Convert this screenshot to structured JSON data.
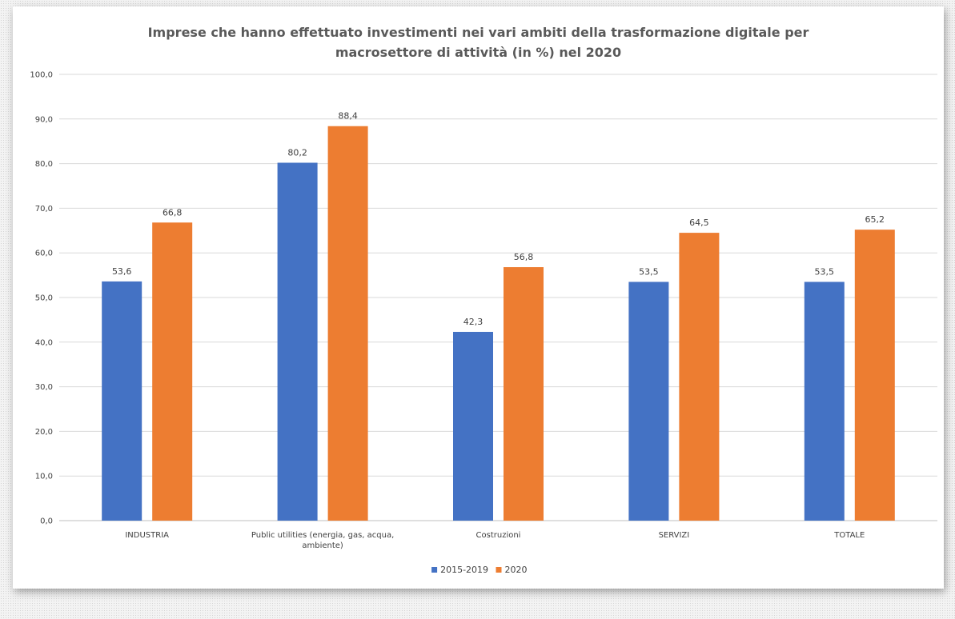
{
  "chart_data": {
    "type": "bar",
    "title_lines": [
      "Imprese che hanno effettuato investimenti nei vari ambiti della trasformazione digitale per",
      "macrosettore di attività (in %) nel 2020"
    ],
    "categories": [
      [
        "INDUSTRIA"
      ],
      [
        "Public utilities (energia, gas, acqua,",
        "ambiente)"
      ],
      [
        "Costruzioni"
      ],
      [
        "SERVIZI"
      ],
      [
        "TOTALE"
      ]
    ],
    "series": [
      {
        "name": "2015-2019",
        "color": "#4472c4",
        "values": [
          53.6,
          80.2,
          42.3,
          53.5,
          53.5
        ],
        "labels": [
          "53,6",
          "80,2",
          "42,3",
          "53,5",
          "53,5"
        ]
      },
      {
        "name": "2020",
        "color": "#ed7d31",
        "values": [
          66.8,
          88.4,
          56.8,
          64.5,
          65.2
        ],
        "labels": [
          "66,8",
          "88,4",
          "56,8",
          "64,5",
          "65,2"
        ]
      }
    ],
    "ylim": [
      0,
      100
    ],
    "yticks": [
      0,
      10,
      20,
      30,
      40,
      50,
      60,
      70,
      80,
      90,
      100
    ],
    "ytick_labels": [
      "0,0",
      "10,0",
      "20,0",
      "30,0",
      "40,0",
      "50,0",
      "60,0",
      "70,0",
      "80,0",
      "90,0",
      "100,0"
    ],
    "grid": true,
    "legend_position": "bottom",
    "xlabel": "",
    "ylabel": ""
  }
}
